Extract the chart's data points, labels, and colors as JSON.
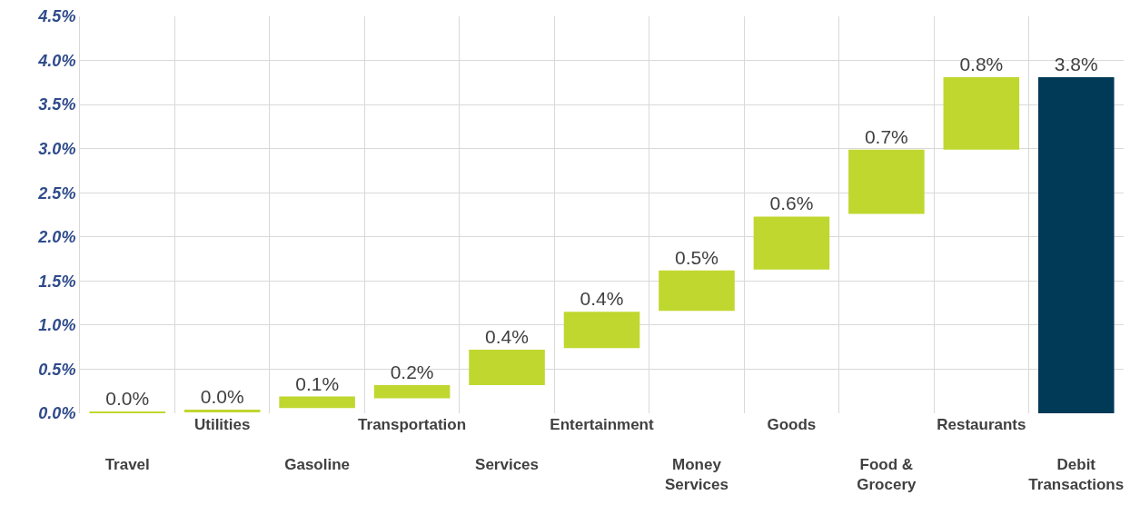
{
  "chart_data": {
    "type": "bar",
    "categories": [
      "Travel",
      "Utilities",
      "Gasoline",
      "Transportation",
      "Services",
      "Entertainment",
      "Money Services",
      "Goods",
      "Food & Grocery",
      "Restaurants",
      "Debit Transactions"
    ],
    "values": [
      0.02,
      0.03,
      0.13,
      0.15,
      0.4,
      0.41,
      0.46,
      0.6,
      0.73,
      0.82,
      3.81
    ],
    "base": [
      0,
      0.01,
      0.06,
      0.17,
      0.32,
      0.74,
      1.16,
      1.63,
      2.26,
      2.99,
      0
    ],
    "colors": [
      "#c0d72f",
      "#c0d72f",
      "#c0d72f",
      "#c0d72f",
      "#c0d72f",
      "#c0d72f",
      "#c0d72f",
      "#c0d72f",
      "#c0d72f",
      "#c0d72f",
      "#003a57"
    ],
    "value_labels": [
      "0.0%",
      "0.0%",
      "0.1%",
      "0.2%",
      "0.4%",
      "0.4%",
      "0.5%",
      "0.6%",
      "0.7%",
      "0.8%",
      "3.8%"
    ],
    "ylim": [
      0,
      4.5
    ],
    "yticks": [
      {
        "value": 0,
        "label": "0.0%"
      },
      {
        "value": 0.5,
        "label": "0.5%"
      },
      {
        "value": 1,
        "label": "1.0%"
      },
      {
        "value": 1.5,
        "label": "1.5%"
      },
      {
        "value": 2,
        "label": "2.0%"
      },
      {
        "value": 2.5,
        "label": "2.5%"
      },
      {
        "value": 3,
        "label": "3.0%"
      },
      {
        "value": 3.5,
        "label": "3.5%"
      },
      {
        "value": 4,
        "label": "4.0%"
      },
      {
        "value": 4.5,
        "label": "4.5%"
      }
    ],
    "grid": true
  }
}
